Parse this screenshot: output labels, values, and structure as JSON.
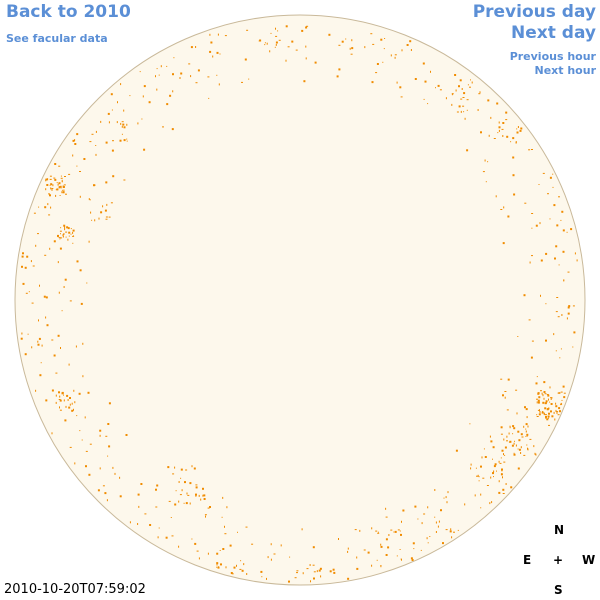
{
  "nav": {
    "back_label": "Back to 2010",
    "facular_label": "See facular data",
    "previous_day_label": "Previous day",
    "next_day_label": "Next day",
    "previous_hour_label": "Previous hour",
    "next_hour_label": "Next hour"
  },
  "timestamp": "2010-10-20T07:59:02",
  "compass": {
    "north": "N",
    "south": "S",
    "east": "E",
    "west": "W",
    "center": "+"
  },
  "colors": {
    "disk_fill": "#fdf8ec",
    "disk_border": "#c9b99a",
    "facula": "#f08c00",
    "link": "#5b8fd6"
  }
}
